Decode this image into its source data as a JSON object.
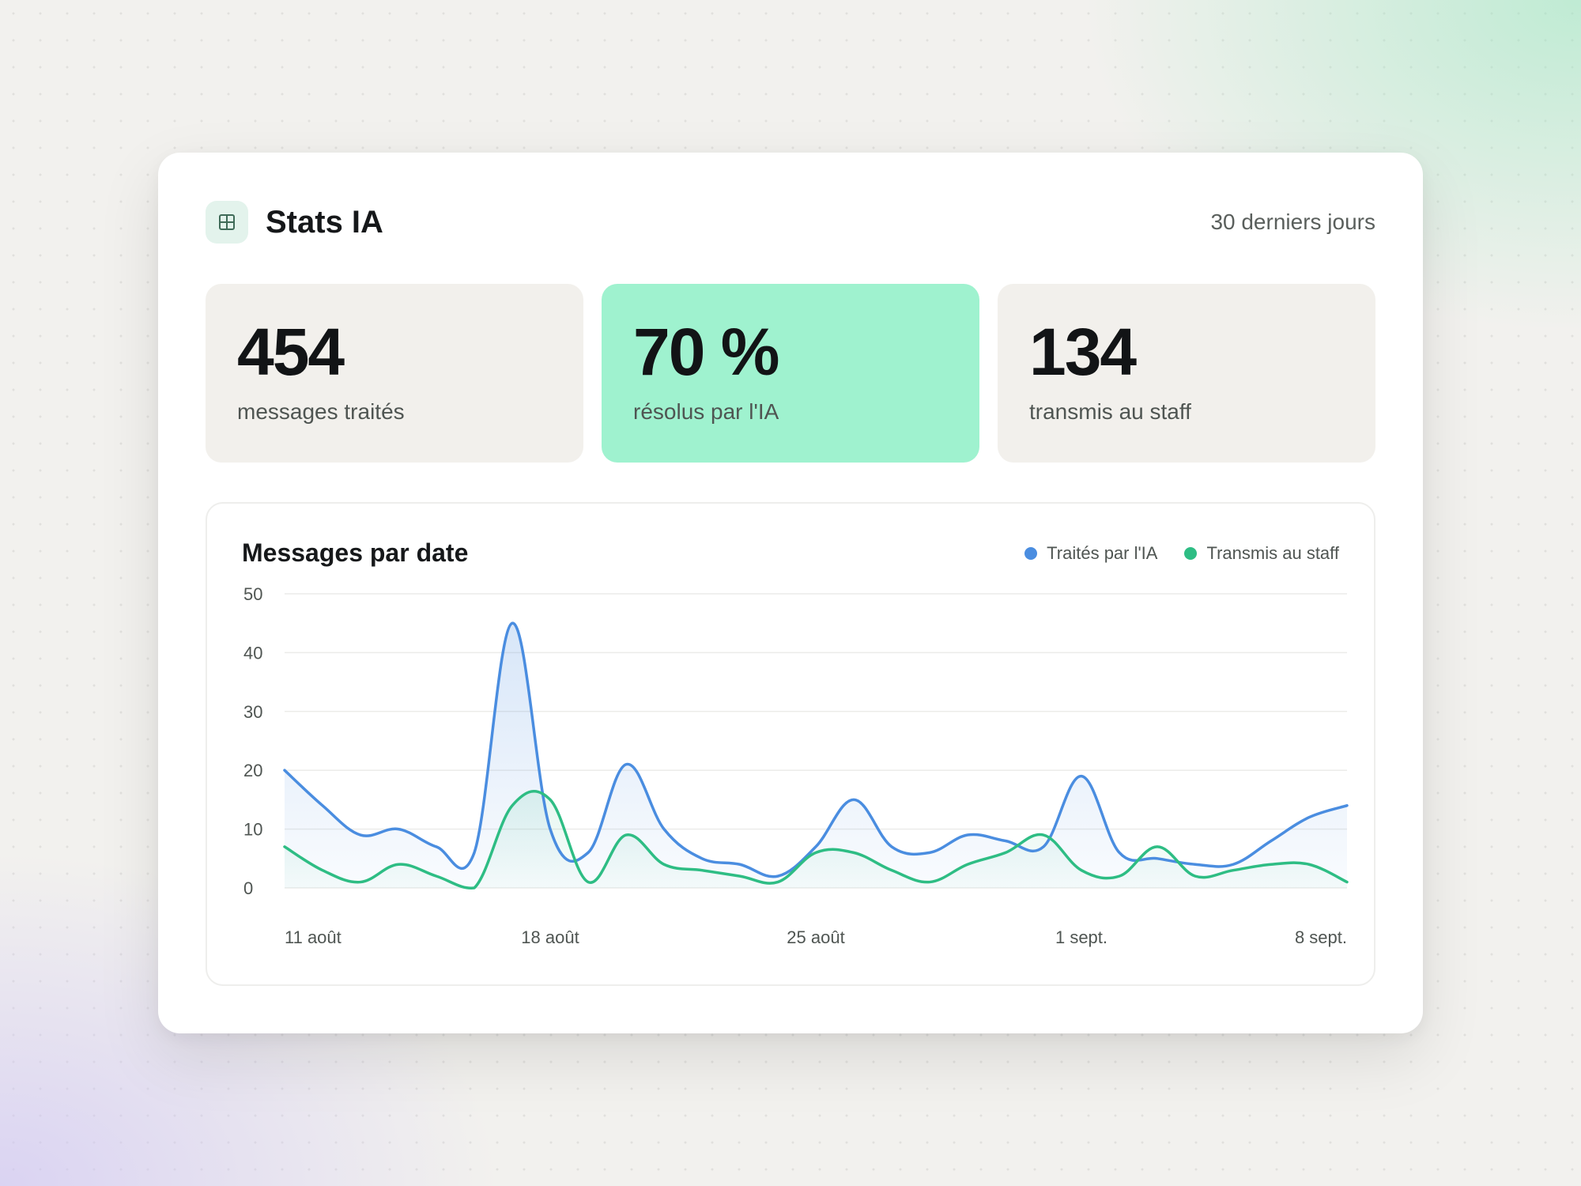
{
  "header": {
    "title": "Stats IA",
    "icon": "grid-icon",
    "period": "30 derniers jours"
  },
  "stats": [
    {
      "value": "454",
      "label": "messages traités"
    },
    {
      "value": "70 %",
      "label": "résolus par l'IA"
    },
    {
      "value": "134",
      "label": "transmis au staff"
    }
  ],
  "colors": {
    "accent": "#9ff2cf",
    "series_ai": "#4a8de0",
    "series_staff": "#2ebd84"
  },
  "chart_data": {
    "type": "line",
    "title": "Messages par date",
    "xlabel": "",
    "ylabel": "",
    "ylim": [
      0,
      50
    ],
    "yticks": [
      "50",
      "40",
      "30",
      "20",
      "10",
      "0"
    ],
    "xticks": [
      "11 août",
      "18 août",
      "25 août",
      "1 sept.",
      "8 sept."
    ],
    "x": [
      "11 août",
      "12 août",
      "13 août",
      "14 août",
      "15 août",
      "16 août",
      "17 août",
      "18 août",
      "19 août",
      "20 août",
      "21 août",
      "22 août",
      "23 août",
      "24 août",
      "25 août",
      "26 août",
      "27 août",
      "28 août",
      "29 août",
      "30 août",
      "31 août",
      "1 sept.",
      "2 sept.",
      "3 sept.",
      "4 sept.",
      "5 sept.",
      "6 sept.",
      "7 sept.",
      "8 sept."
    ],
    "legend_position": "top-right",
    "grid": true,
    "series": [
      {
        "name": "Traités par l'IA",
        "color": "#4a8de0",
        "values": [
          20,
          14,
          9,
          10,
          7,
          6,
          45,
          10,
          6,
          21,
          10,
          5,
          4,
          2,
          7,
          15,
          7,
          6,
          9,
          8,
          7,
          19,
          6,
          5,
          4,
          4,
          8,
          12,
          14
        ]
      },
      {
        "name": "Transmis au staff",
        "color": "#2ebd84",
        "values": [
          7,
          3,
          1,
          4,
          2,
          0,
          14,
          15,
          1,
          9,
          4,
          3,
          2,
          1,
          6,
          6,
          3,
          1,
          4,
          6,
          9,
          3,
          2,
          7,
          2,
          3,
          4,
          4,
          1
        ]
      }
    ]
  }
}
